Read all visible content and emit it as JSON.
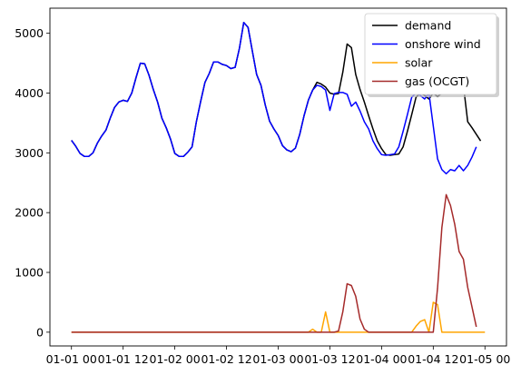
{
  "chart_data": {
    "type": "line",
    "title": "",
    "xlabel": "",
    "ylabel": "",
    "grid": false,
    "legend": "top-right",
    "x_start": "2013-01-01 00:00",
    "x_step_hours": 1,
    "xlim": [
      -5,
      101
    ],
    "ylim": [
      -230,
      5420
    ],
    "x_ticks": [
      {
        "label": "01-01 00",
        "x": 0
      },
      {
        "label": "01-01 12",
        "x": 12
      },
      {
        "label": "01-02 00",
        "x": 24
      },
      {
        "label": "01-02 12",
        "x": 36
      },
      {
        "label": "01-03 00",
        "x": 48
      },
      {
        "label": "01-03 12",
        "x": 60
      },
      {
        "label": "01-04 00",
        "x": 72
      },
      {
        "label": "01-04 12",
        "x": 84
      },
      {
        "label": "01-05 00",
        "x": 96
      }
    ],
    "y_ticks": [
      0,
      1000,
      2000,
      3000,
      4000,
      5000
    ],
    "series": [
      {
        "name": "demand",
        "color": "#000000",
        "values": [
          3210,
          3110,
          2990,
          2940,
          2940,
          3000,
          3160,
          3280,
          3380,
          3580,
          3760,
          3850,
          3880,
          3860,
          4000,
          4260,
          4500,
          4490,
          4300,
          4060,
          3850,
          3580,
          3420,
          3230,
          2990,
          2940,
          2940,
          3010,
          3100,
          3520,
          3860,
          4180,
          4330,
          4520,
          4520,
          4480,
          4460,
          4410,
          4430,
          4750,
          5180,
          5100,
          4700,
          4310,
          4130,
          3800,
          3530,
          3400,
          3290,
          3120,
          3050,
          3020,
          3080,
          3310,
          3620,
          3880,
          4050,
          4180,
          4150,
          4100,
          4000,
          3980,
          3990,
          4350,
          4820,
          4760,
          4310,
          4060,
          3850,
          3620,
          3400,
          3200,
          3070,
          2970,
          2960,
          2970,
          2980,
          3100,
          3360,
          3640,
          3930,
          4000,
          3960,
          3900,
          4000,
          3940,
          4000,
          4010,
          4070,
          4060,
          4250,
          4130,
          3520,
          3420,
          3310,
          3200
        ]
      },
      {
        "name": "onshore wind",
        "color": "#0000ff",
        "values": [
          3210,
          3110,
          2990,
          2940,
          2940,
          3000,
          3160,
          3280,
          3380,
          3580,
          3760,
          3850,
          3880,
          3860,
          4000,
          4260,
          4500,
          4490,
          4300,
          4060,
          3850,
          3580,
          3420,
          3230,
          2990,
          2940,
          2940,
          3010,
          3100,
          3520,
          3860,
          4180,
          4330,
          4520,
          4520,
          4480,
          4460,
          4410,
          4430,
          4750,
          5180,
          5100,
          4700,
          4310,
          4130,
          3800,
          3530,
          3400,
          3290,
          3120,
          3050,
          3020,
          3080,
          3310,
          3620,
          3880,
          4050,
          4130,
          4110,
          4050,
          3710,
          3990,
          4010,
          4010,
          3980,
          3780,
          3850,
          3700,
          3520,
          3400,
          3200,
          3070,
          2970,
          2960,
          2970,
          2980,
          3100,
          3360,
          3640,
          3930,
          4000,
          3960,
          3900,
          4000,
          3450,
          2900,
          2720,
          2650,
          2720,
          2700,
          2790,
          2700,
          2790,
          2930,
          3100
        ]
      },
      {
        "name": "solar",
        "color": "#ffa500",
        "values": [
          0,
          0,
          0,
          0,
          0,
          0,
          0,
          0,
          0,
          0,
          0,
          0,
          0,
          0,
          0,
          0,
          0,
          0,
          0,
          0,
          0,
          0,
          0,
          0,
          0,
          0,
          0,
          0,
          0,
          0,
          0,
          0,
          0,
          0,
          0,
          0,
          0,
          0,
          0,
          0,
          0,
          0,
          0,
          0,
          0,
          0,
          0,
          0,
          0,
          0,
          0,
          0,
          0,
          0,
          0,
          0,
          50,
          0,
          0,
          340,
          0,
          0,
          0,
          0,
          0,
          0,
          0,
          0,
          0,
          0,
          0,
          0,
          0,
          0,
          0,
          0,
          0,
          0,
          0,
          0,
          100,
          180,
          210,
          0,
          500,
          460,
          0,
          0,
          0,
          0,
          0,
          0,
          0,
          0,
          0,
          0,
          0
        ]
      },
      {
        "name": "gas (OCGT)",
        "color": "#a52a2a",
        "values": [
          0,
          0,
          0,
          0,
          0,
          0,
          0,
          0,
          0,
          0,
          0,
          0,
          0,
          0,
          0,
          0,
          0,
          0,
          0,
          0,
          0,
          0,
          0,
          0,
          0,
          0,
          0,
          0,
          0,
          0,
          0,
          0,
          0,
          0,
          0,
          0,
          0,
          0,
          0,
          0,
          0,
          0,
          0,
          0,
          0,
          0,
          0,
          0,
          0,
          0,
          0,
          0,
          0,
          0,
          0,
          0,
          0,
          0,
          0,
          0,
          0,
          0,
          20,
          340,
          810,
          780,
          600,
          220,
          50,
          0,
          0,
          0,
          0,
          0,
          0,
          0,
          0,
          0,
          0,
          0,
          0,
          0,
          0,
          0,
          0,
          740,
          1750,
          2300,
          2120,
          1800,
          1350,
          1220,
          750,
          420,
          90
        ]
      }
    ]
  }
}
